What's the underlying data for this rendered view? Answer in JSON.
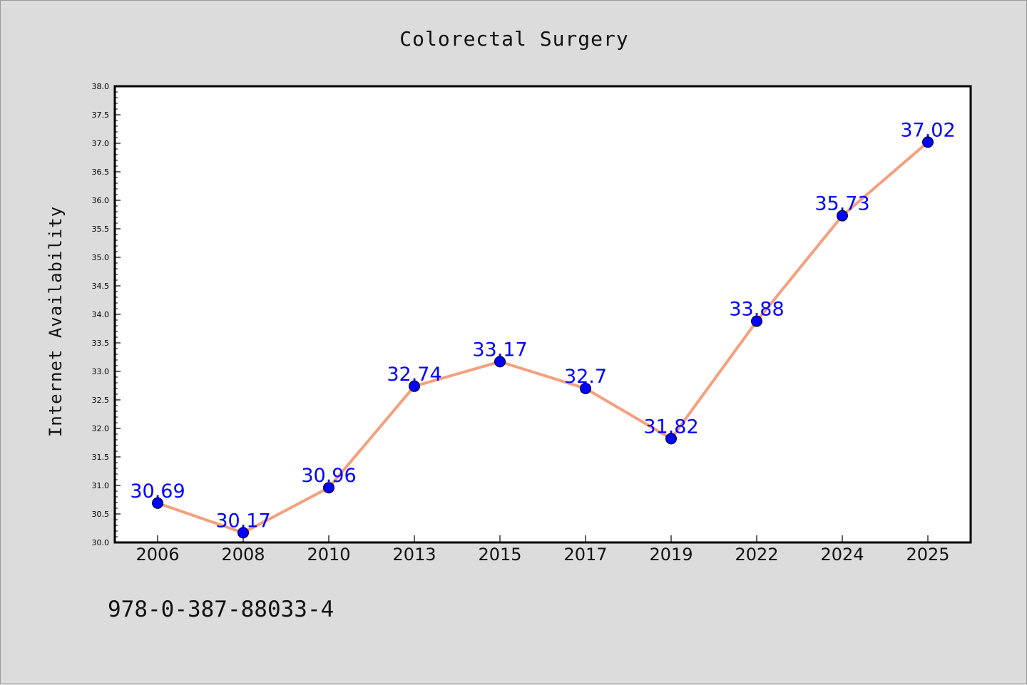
{
  "chart_data": {
    "type": "line",
    "title": "Colorectal Surgery",
    "xlabel": "",
    "ylabel": "Internet Availability",
    "categories": [
      "2006",
      "2008",
      "2010",
      "2013",
      "2015",
      "2017",
      "2019",
      "2022",
      "2024",
      "2025"
    ],
    "series": [
      {
        "values": [
          30.69,
          30.17,
          30.96,
          32.74,
          33.17,
          32.7,
          31.82,
          33.88,
          35.73,
          37.02
        ],
        "line_color": "#f4a07e",
        "marker_color": "#0000ff"
      }
    ],
    "ylim": [
      30.0,
      38.0
    ],
    "yticks": [
      "30.0",
      "30.5",
      "31.0",
      "31.5",
      "32.0",
      "32.5",
      "33.0",
      "33.5",
      "34.0",
      "34.5",
      "35.0",
      "35.5",
      "36.0",
      "36.5",
      "37.0",
      "37.5",
      "38.0"
    ],
    "data_labels": [
      "30.69",
      "30.17",
      "30.96",
      "32.74",
      "33.17",
      "32.7",
      "31.82",
      "33.88",
      "35.73",
      "37.02"
    ],
    "label_color": "#0000ff",
    "grid": false,
    "legend": "none"
  },
  "footer": {
    "isbn": "978-0-387-88033-4"
  }
}
